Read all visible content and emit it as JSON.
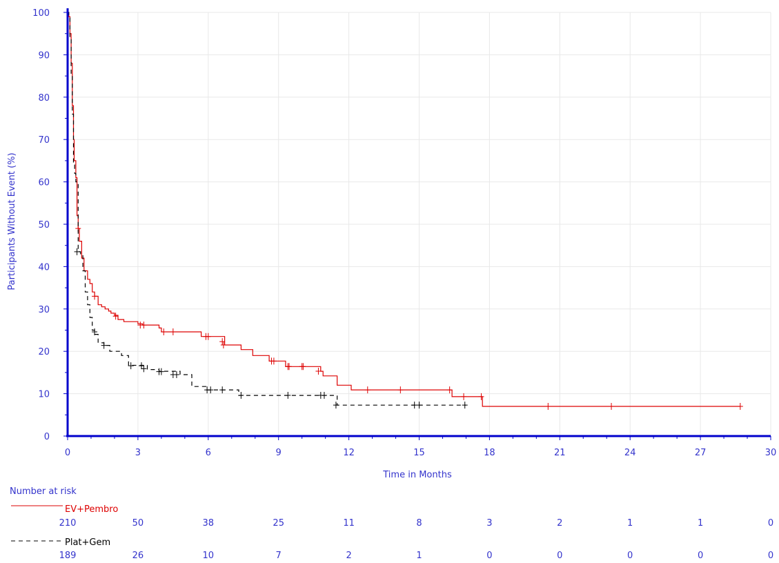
{
  "chart_data": {
    "type": "line",
    "subtype": "kaplan-meier",
    "xlabel": "Time in Months",
    "ylabel": "Participants Without Event (%)",
    "xlim": [
      0,
      30
    ],
    "ylim": [
      0,
      100
    ],
    "xticks": [
      0,
      3,
      6,
      9,
      12,
      15,
      18,
      21,
      24,
      27,
      30
    ],
    "yticks": [
      0,
      10,
      20,
      30,
      40,
      50,
      60,
      70,
      80,
      90,
      100
    ],
    "grid": true,
    "colors": {
      "axis": "#0000cc",
      "text": "#3333cc",
      "grid": "#e8e8e8"
    },
    "series": [
      {
        "name": "EV+Pembro",
        "color": "#dd0000",
        "dash": "solid",
        "steps": [
          [
            0,
            100
          ],
          [
            0.05,
            99
          ],
          [
            0.1,
            95
          ],
          [
            0.15,
            88
          ],
          [
            0.2,
            78
          ],
          [
            0.25,
            70
          ],
          [
            0.28,
            65
          ],
          [
            0.35,
            61
          ],
          [
            0.4,
            52
          ],
          [
            0.45,
            49
          ],
          [
            0.5,
            46
          ],
          [
            0.6,
            42
          ],
          [
            0.7,
            39
          ],
          [
            0.85,
            37
          ],
          [
            0.95,
            36
          ],
          [
            1.05,
            34
          ],
          [
            1.15,
            33
          ],
          [
            1.3,
            31
          ],
          [
            1.45,
            30.5
          ],
          [
            1.6,
            30
          ],
          [
            1.75,
            29.5
          ],
          [
            1.85,
            29
          ],
          [
            2.0,
            28.5
          ],
          [
            2.15,
            27.5
          ],
          [
            2.4,
            27
          ],
          [
            3.0,
            26.5
          ],
          [
            3.2,
            26.2
          ],
          [
            3.9,
            25.5
          ],
          [
            4.0,
            24.6
          ],
          [
            5.0,
            24.6
          ],
          [
            5.7,
            23.5
          ],
          [
            6.7,
            22.5
          ],
          [
            6.7,
            21.5
          ],
          [
            7.4,
            20.4
          ],
          [
            7.9,
            19
          ],
          [
            8.6,
            17.7
          ],
          [
            9.3,
            16.4
          ],
          [
            10.8,
            15.3
          ],
          [
            10.9,
            14.2
          ],
          [
            11.5,
            12
          ],
          [
            12.1,
            10.9
          ],
          [
            16.4,
            9.3
          ],
          [
            17.6,
            9.3
          ],
          [
            17.7,
            7
          ],
          [
            28.7,
            7
          ]
        ],
        "censored": [
          [
            0.45,
            49
          ],
          [
            1.15,
            33
          ],
          [
            2.05,
            28.3
          ],
          [
            3.1,
            26.2
          ],
          [
            3.25,
            26.2
          ],
          [
            4.1,
            24.6
          ],
          [
            4.5,
            24.6
          ],
          [
            5.9,
            23.5
          ],
          [
            6.0,
            23.5
          ],
          [
            6.6,
            22.3
          ],
          [
            6.65,
            21.5
          ],
          [
            8.7,
            17.7
          ],
          [
            8.8,
            17.7
          ],
          [
            9.4,
            16.4
          ],
          [
            9.45,
            16.4
          ],
          [
            10.0,
            16.4
          ],
          [
            10.05,
            16.4
          ],
          [
            10.7,
            15.3
          ],
          [
            12.8,
            10.9
          ],
          [
            14.2,
            10.9
          ],
          [
            16.3,
            10.9
          ],
          [
            16.9,
            9.3
          ],
          [
            17.65,
            9.3
          ],
          [
            20.5,
            7
          ],
          [
            23.2,
            7
          ],
          [
            28.7,
            7
          ]
        ]
      },
      {
        "name": "Plat+Gem",
        "color": "#000000",
        "dash": "dashed",
        "steps": [
          [
            0,
            100
          ],
          [
            0.05,
            99
          ],
          [
            0.1,
            94
          ],
          [
            0.15,
            85
          ],
          [
            0.2,
            76
          ],
          [
            0.25,
            64
          ],
          [
            0.3,
            62
          ],
          [
            0.35,
            60
          ],
          [
            0.45,
            43.5
          ],
          [
            0.55,
            43
          ],
          [
            0.65,
            39
          ],
          [
            0.75,
            34
          ],
          [
            0.85,
            31
          ],
          [
            0.95,
            28
          ],
          [
            1.05,
            25
          ],
          [
            1.15,
            24
          ],
          [
            1.3,
            22
          ],
          [
            1.55,
            21.4
          ],
          [
            1.8,
            20
          ],
          [
            2.3,
            19
          ],
          [
            2.6,
            16.7
          ],
          [
            3.4,
            15.7
          ],
          [
            3.9,
            15.3
          ],
          [
            4.8,
            14.5
          ],
          [
            5.3,
            11.7
          ],
          [
            5.9,
            10.9
          ],
          [
            6.4,
            10.9
          ],
          [
            7.3,
            9.6
          ],
          [
            11.5,
            7.3
          ],
          [
            17.0,
            7.3
          ]
        ],
        "censored": [
          [
            0.4,
            43.5
          ],
          [
            1.15,
            24.6
          ],
          [
            1.55,
            21.4
          ],
          [
            2.7,
            16.6
          ],
          [
            3.15,
            16.6
          ],
          [
            3.25,
            15.9
          ],
          [
            3.9,
            15.2
          ],
          [
            4.0,
            15.2
          ],
          [
            4.5,
            14.5
          ],
          [
            4.65,
            14.5
          ],
          [
            5.95,
            10.9
          ],
          [
            6.1,
            10.9
          ],
          [
            6.6,
            10.9
          ],
          [
            7.4,
            9.6
          ],
          [
            9.4,
            9.6
          ],
          [
            10.8,
            9.6
          ],
          [
            10.95,
            9.6
          ],
          [
            11.45,
            7.3
          ],
          [
            14.8,
            7.3
          ],
          [
            15.0,
            7.3
          ],
          [
            16.95,
            7.3
          ]
        ]
      }
    ]
  },
  "risk_table": {
    "title": "Number at risk",
    "times": [
      0,
      3,
      6,
      9,
      12,
      15,
      18,
      21,
      24,
      27,
      30
    ],
    "rows": [
      {
        "label": "EV+Pembro",
        "values": [
          "210",
          "50",
          "38",
          "25",
          "11",
          "8",
          "3",
          "2",
          "1",
          "1",
          "0"
        ]
      },
      {
        "label": "Plat+Gem",
        "values": [
          "189",
          "26",
          "10",
          "7",
          "2",
          "1",
          "0",
          "0",
          "0",
          "0",
          "0"
        ]
      }
    ]
  }
}
